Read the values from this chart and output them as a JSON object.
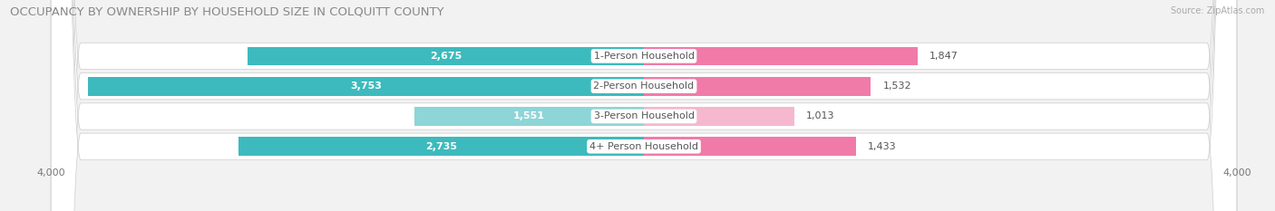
{
  "title": "OCCUPANCY BY OWNERSHIP BY HOUSEHOLD SIZE IN COLQUITT COUNTY",
  "source": "Source: ZipAtlas.com",
  "categories": [
    "1-Person Household",
    "2-Person Household",
    "3-Person Household",
    "4+ Person Household"
  ],
  "owner_values": [
    2675,
    3753,
    1551,
    2735
  ],
  "renter_values": [
    1847,
    1532,
    1013,
    1433
  ],
  "max_scale": 4000,
  "owner_color_dark": "#3DBABD",
  "owner_color_light": "#8ED5D7",
  "renter_color_dark": "#F07BA8",
  "renter_color_light": "#F5B8CE",
  "bg_color": "#F2F2F2",
  "row_bg_color": "#E8E8E8",
  "row_bg_light": "#EFEFEF",
  "title_fontsize": 9.5,
  "label_fontsize_inside": 8,
  "label_fontsize_outside": 8,
  "axis_fontsize": 8,
  "legend_fontsize": 8,
  "source_fontsize": 7
}
